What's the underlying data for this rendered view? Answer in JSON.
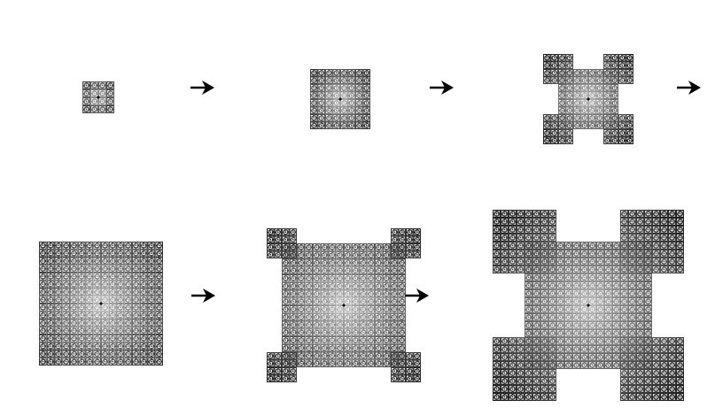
{
  "diagram": {
    "colors": {
      "background": "#ffffff",
      "arrow": "#000000",
      "center_dark": "#111111",
      "center_light": "#c2c2c2",
      "outer_dark": "#1e1e1e"
    },
    "stages": [
      {
        "step": 1,
        "shape": "square-block",
        "tiles_per_side": 1
      },
      {
        "step": 2,
        "shape": "square-block",
        "tiles_per_side": 2
      },
      {
        "step": 3,
        "shape": "square-with-corner-blocks",
        "tiles_per_side": 2
      },
      {
        "step": 4,
        "shape": "square-block",
        "tiles_per_side": 4
      },
      {
        "step": 5,
        "shape": "square-with-corner-blocks",
        "tiles_per_side": 4
      },
      {
        "step": 6,
        "shape": "square-with-corner-blocks",
        "tiles_per_side": 4
      }
    ],
    "arrows": [
      {
        "from_step": 1,
        "to_step": 2,
        "icon": "right-arrow-icon"
      },
      {
        "from_step": 2,
        "to_step": 3,
        "icon": "right-arrow-icon"
      },
      {
        "from_step": 3,
        "to_step": 4,
        "icon": "right-arrow-icon"
      },
      {
        "from_step": 4,
        "to_step": 5,
        "icon": "right-arrow-icon"
      },
      {
        "from_step": 5,
        "to_step": 6,
        "icon": "right-arrow-icon"
      }
    ]
  }
}
